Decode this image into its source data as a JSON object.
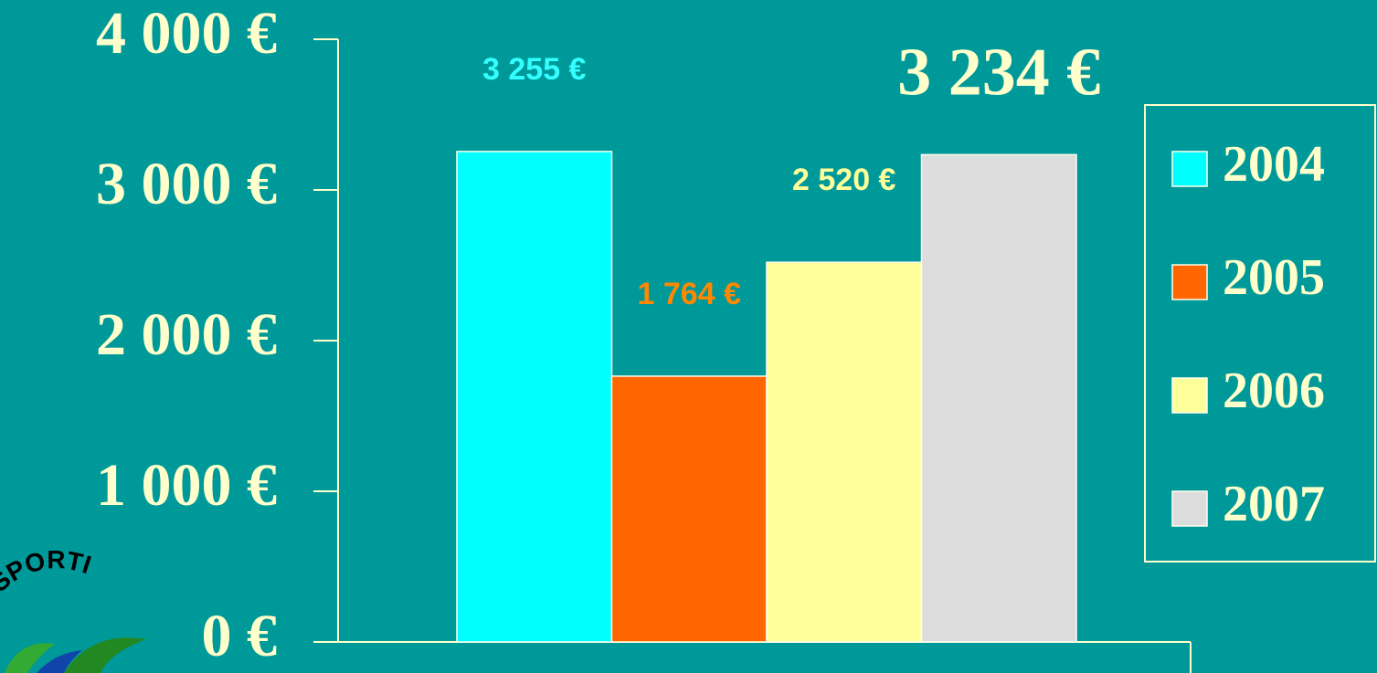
{
  "chart_data": {
    "type": "bar",
    "categories": [
      null
    ],
    "series": [
      {
        "name": "2004",
        "color": "#00ffff",
        "values": [
          3255
        ],
        "value_labels": [
          "3 255 €"
        ]
      },
      {
        "name": "2005",
        "color": "#ff6600",
        "values": [
          1764
        ],
        "value_labels": [
          "1 764 €"
        ]
      },
      {
        "name": "2006",
        "color": "#ffff99",
        "values": [
          2520
        ],
        "value_labels": [
          "2 520 €"
        ]
      },
      {
        "name": "2007",
        "color": "#dddddd",
        "values": [
          3234
        ],
        "value_labels": [
          "3 234 €"
        ]
      }
    ],
    "ylim": [
      0,
      4000
    ],
    "yticks": [
      {
        "value": 0,
        "label": "0 €"
      },
      {
        "value": 1000,
        "label": "1 000 €"
      },
      {
        "value": 2000,
        "label": "2 000 €"
      },
      {
        "value": 3000,
        "label": "3 000 €"
      },
      {
        "value": 4000,
        "label": "4 000 €"
      }
    ],
    "legend": "right",
    "logo_text": "SPORTI"
  }
}
